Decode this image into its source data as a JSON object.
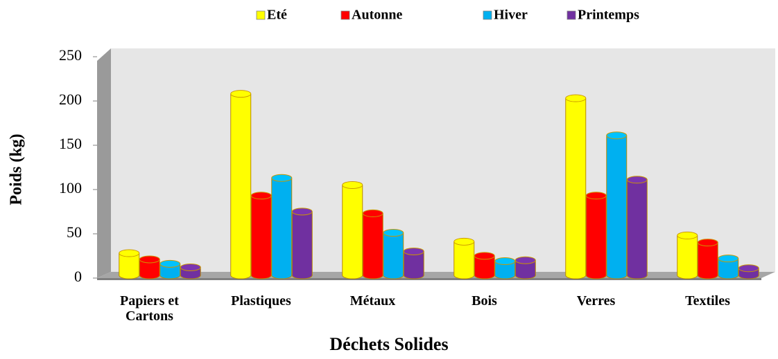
{
  "chart_data": {
    "type": "bar3d",
    "xlabel": "Déchets Solides",
    "ylabel": "Poids (kg)",
    "categories": [
      "Papiers et Cartons",
      "Plastiques",
      "Métaux",
      "Bois",
      "Verres",
      "Textiles"
    ],
    "series": [
      {
        "name": "Eté",
        "color": "#ffff00",
        "values": [
          25,
          205,
          102,
          38,
          200,
          45
        ]
      },
      {
        "name": "Autonne",
        "color": "#ff0000",
        "values": [
          18,
          90,
          70,
          22,
          90,
          37
        ]
      },
      {
        "name": "Hiver",
        "color": "#00b0f0",
        "values": [
          13,
          110,
          48,
          16,
          158,
          19
        ]
      },
      {
        "name": "Printemps",
        "color": "#7030a0",
        "values": [
          9,
          72,
          27,
          17,
          108,
          8
        ]
      }
    ],
    "ylim": [
      0,
      250
    ],
    "yticks": [
      0,
      50,
      100,
      150,
      200,
      250
    ],
    "legend": "top"
  }
}
